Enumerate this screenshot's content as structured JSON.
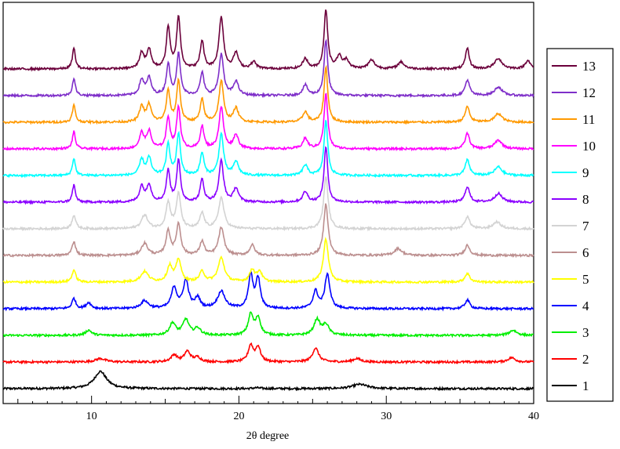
{
  "chart_data": {
    "type": "line",
    "xlabel": "2θ degree",
    "ylabel": "",
    "title": "",
    "xlim": [
      4,
      40
    ],
    "xticks": [
      10,
      20,
      30,
      40
    ],
    "legend_position": "right",
    "stacked_offset": true,
    "colors": {
      "1": "#000000",
      "2": "#ff0000",
      "3": "#00ee00",
      "4": "#0000ff",
      "5": "#ffff00",
      "6": "#bc8f8f",
      "7": "#d3d3d3",
      "8": "#8b00ff",
      "9": "#00ffff",
      "10": "#ff00ff",
      "11": "#ff9900",
      "12": "#7e2ec9",
      "13": "#6b003b"
    },
    "series": [
      {
        "name": "1",
        "peaks": [
          [
            10.6,
            1.0,
            0.5
          ],
          [
            28.2,
            0.25,
            0.6
          ],
          [
            21.2,
            0.05,
            0.3
          ]
        ]
      },
      {
        "name": "2",
        "peaks": [
          [
            10.6,
            0.2,
            0.4
          ],
          [
            15.6,
            0.4,
            0.25
          ],
          [
            16.5,
            0.6,
            0.25
          ],
          [
            17.2,
            0.25,
            0.25
          ],
          [
            20.8,
            0.95,
            0.2
          ],
          [
            21.3,
            0.85,
            0.2
          ],
          [
            25.2,
            0.8,
            0.25
          ],
          [
            28.0,
            0.2,
            0.3
          ],
          [
            38.5,
            0.25,
            0.3
          ]
        ]
      },
      {
        "name": "3",
        "peaks": [
          [
            9.8,
            0.3,
            0.25
          ],
          [
            15.5,
            0.7,
            0.25
          ],
          [
            16.4,
            0.9,
            0.25
          ],
          [
            17.2,
            0.4,
            0.25
          ],
          [
            20.8,
            1.2,
            0.2
          ],
          [
            21.3,
            1.0,
            0.2
          ],
          [
            25.3,
            0.9,
            0.25
          ],
          [
            25.9,
            0.6,
            0.25
          ],
          [
            38.6,
            0.3,
            0.3
          ]
        ]
      },
      {
        "name": "4",
        "peaks": [
          [
            8.8,
            0.6,
            0.15
          ],
          [
            9.8,
            0.35,
            0.2
          ],
          [
            13.6,
            0.45,
            0.3
          ],
          [
            15.6,
            1.2,
            0.22
          ],
          [
            16.4,
            1.6,
            0.22
          ],
          [
            17.2,
            0.6,
            0.2
          ],
          [
            18.8,
            1.0,
            0.3
          ],
          [
            20.8,
            1.9,
            0.18
          ],
          [
            21.3,
            1.7,
            0.18
          ],
          [
            25.2,
            1.0,
            0.2
          ],
          [
            26.0,
            2.0,
            0.2
          ],
          [
            35.5,
            0.5,
            0.2
          ]
        ]
      },
      {
        "name": "5",
        "peaks": [
          [
            8.8,
            0.7,
            0.15
          ],
          [
            13.6,
            0.6,
            0.3
          ],
          [
            15.3,
            0.9,
            0.2
          ],
          [
            15.9,
            1.3,
            0.2
          ],
          [
            17.5,
            0.6,
            0.2
          ],
          [
            18.8,
            1.4,
            0.25
          ],
          [
            20.9,
            0.7,
            0.2
          ],
          [
            21.4,
            0.6,
            0.2
          ],
          [
            25.9,
            2.5,
            0.2
          ],
          [
            35.5,
            0.5,
            0.2
          ]
        ]
      },
      {
        "name": "6",
        "peaks": [
          [
            8.8,
            0.8,
            0.15
          ],
          [
            13.6,
            0.7,
            0.25
          ],
          [
            15.2,
            1.4,
            0.18
          ],
          [
            15.9,
            1.8,
            0.18
          ],
          [
            17.5,
            0.8,
            0.18
          ],
          [
            18.8,
            1.6,
            0.22
          ],
          [
            20.9,
            0.6,
            0.2
          ],
          [
            25.9,
            3.0,
            0.18
          ],
          [
            30.8,
            0.4,
            0.3
          ],
          [
            35.5,
            0.6,
            0.2
          ]
        ]
      },
      {
        "name": "7",
        "peaks": [
          [
            8.8,
            0.8,
            0.15
          ],
          [
            13.6,
            0.8,
            0.25
          ],
          [
            15.2,
            1.5,
            0.18
          ],
          [
            15.9,
            2.0,
            0.18
          ],
          [
            17.5,
            0.9,
            0.18
          ],
          [
            18.8,
            1.8,
            0.22
          ],
          [
            25.9,
            3.0,
            0.18
          ],
          [
            35.5,
            0.7,
            0.2
          ],
          [
            37.5,
            0.4,
            0.3
          ]
        ]
      },
      {
        "name": "8",
        "peaks": [
          [
            8.8,
            1.0,
            0.12
          ],
          [
            13.4,
            0.9,
            0.18
          ],
          [
            13.9,
            1.0,
            0.18
          ],
          [
            15.2,
            1.8,
            0.15
          ],
          [
            15.9,
            2.4,
            0.15
          ],
          [
            17.5,
            1.3,
            0.15
          ],
          [
            18.8,
            2.4,
            0.18
          ],
          [
            19.8,
            0.8,
            0.2
          ],
          [
            24.5,
            0.6,
            0.2
          ],
          [
            25.9,
            3.2,
            0.15
          ],
          [
            35.5,
            0.9,
            0.18
          ],
          [
            37.6,
            0.5,
            0.3
          ]
        ]
      },
      {
        "name": "9",
        "peaks": [
          [
            8.8,
            1.0,
            0.12
          ],
          [
            13.4,
            0.9,
            0.18
          ],
          [
            13.9,
            1.0,
            0.18
          ],
          [
            15.2,
            1.8,
            0.15
          ],
          [
            15.9,
            2.4,
            0.15
          ],
          [
            17.5,
            1.3,
            0.15
          ],
          [
            18.8,
            2.4,
            0.18
          ],
          [
            19.8,
            0.8,
            0.2
          ],
          [
            24.5,
            0.6,
            0.2
          ],
          [
            25.9,
            3.2,
            0.15
          ],
          [
            35.5,
            0.9,
            0.18
          ],
          [
            37.6,
            0.5,
            0.3
          ]
        ]
      },
      {
        "name": "10",
        "peaks": [
          [
            8.8,
            1.0,
            0.12
          ],
          [
            13.4,
            0.9,
            0.18
          ],
          [
            13.9,
            1.0,
            0.18
          ],
          [
            15.2,
            1.8,
            0.15
          ],
          [
            15.9,
            2.4,
            0.15
          ],
          [
            17.5,
            1.3,
            0.15
          ],
          [
            18.8,
            2.4,
            0.18
          ],
          [
            19.8,
            0.8,
            0.2
          ],
          [
            24.5,
            0.6,
            0.2
          ],
          [
            25.9,
            3.2,
            0.15
          ],
          [
            35.5,
            0.9,
            0.18
          ],
          [
            37.6,
            0.5,
            0.3
          ]
        ]
      },
      {
        "name": "11",
        "peaks": [
          [
            8.8,
            1.0,
            0.12
          ],
          [
            13.4,
            0.9,
            0.18
          ],
          [
            13.9,
            1.0,
            0.18
          ],
          [
            15.2,
            1.8,
            0.15
          ],
          [
            15.9,
            2.4,
            0.15
          ],
          [
            17.5,
            1.3,
            0.15
          ],
          [
            18.8,
            2.4,
            0.18
          ],
          [
            19.8,
            0.8,
            0.2
          ],
          [
            24.5,
            0.6,
            0.2
          ],
          [
            25.9,
            3.2,
            0.15
          ],
          [
            35.5,
            0.9,
            0.18
          ],
          [
            37.6,
            0.5,
            0.3
          ]
        ]
      },
      {
        "name": "12",
        "peaks": [
          [
            8.8,
            1.0,
            0.12
          ],
          [
            13.4,
            0.9,
            0.18
          ],
          [
            13.9,
            1.0,
            0.18
          ],
          [
            15.2,
            1.8,
            0.15
          ],
          [
            15.9,
            2.4,
            0.15
          ],
          [
            17.5,
            1.3,
            0.15
          ],
          [
            18.8,
            2.4,
            0.18
          ],
          [
            19.8,
            0.8,
            0.2
          ],
          [
            24.5,
            0.6,
            0.2
          ],
          [
            25.9,
            3.2,
            0.15
          ],
          [
            35.5,
            0.9,
            0.18
          ],
          [
            37.6,
            0.5,
            0.3
          ]
        ]
      },
      {
        "name": "13",
        "peaks": [
          [
            8.8,
            1.2,
            0.12
          ],
          [
            13.4,
            0.9,
            0.18
          ],
          [
            13.9,
            1.1,
            0.18
          ],
          [
            15.2,
            2.4,
            0.15
          ],
          [
            15.9,
            3.0,
            0.15
          ],
          [
            17.5,
            1.6,
            0.15
          ],
          [
            18.8,
            3.0,
            0.18
          ],
          [
            19.8,
            0.9,
            0.2
          ],
          [
            21.0,
            0.4,
            0.2
          ],
          [
            24.5,
            0.6,
            0.2
          ],
          [
            25.9,
            3.4,
            0.15
          ],
          [
            26.8,
            0.7,
            0.2
          ],
          [
            27.3,
            0.5,
            0.2
          ],
          [
            29.0,
            0.5,
            0.25
          ],
          [
            31.0,
            0.4,
            0.25
          ],
          [
            35.5,
            1.2,
            0.15
          ],
          [
            37.6,
            0.6,
            0.3
          ],
          [
            39.6,
            0.5,
            0.2
          ]
        ]
      }
    ]
  }
}
